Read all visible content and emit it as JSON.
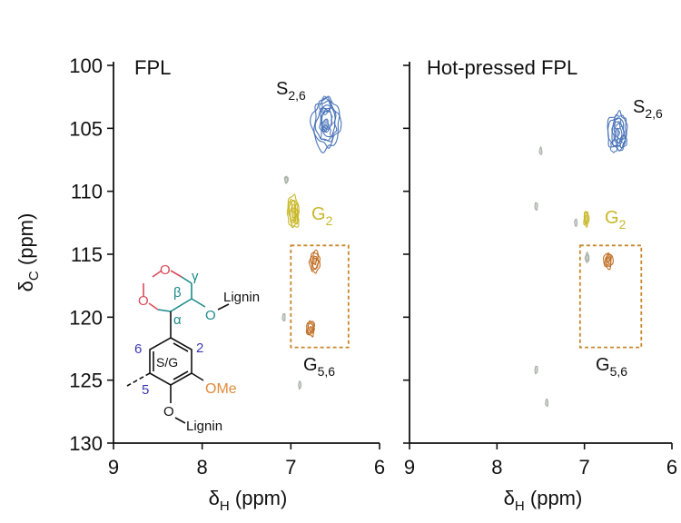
{
  "chart_data": {
    "type": "heatmap",
    "subtype": "2D HSQC NMR spectra (contour plots)",
    "colors": {
      "syringyl": "#4a74b8",
      "guaiacyl": "#c8b828",
      "g56": "#c06e24",
      "artifact": "#a8b0a8",
      "box": "#c8872c",
      "ring_o": "#d94a5a",
      "chain": "#1a8a8a",
      "ome": "#e08a3a",
      "numbers": "#3a3ab4",
      "black": "#111111"
    },
    "axes": {
      "ylabel": "δC (ppm)",
      "ylabel_main": "δ",
      "ylabel_sub": "C",
      "ylabel_unit": " (ppm)",
      "xlabel_main": "δ",
      "xlabel_sub": "H",
      "xlabel_unit": " (ppm)",
      "ylim": [
        130,
        100
      ],
      "yticks": [
        "100",
        "105",
        "110",
        "115",
        "120",
        "125",
        "130"
      ],
      "xlim": [
        9,
        6
      ],
      "xticks": [
        "9",
        "8",
        "7",
        "6"
      ]
    },
    "panels": [
      {
        "title": "FPL",
        "peaks": [
          {
            "label_main": "S",
            "label_sub": "2,6",
            "group": "syringyl",
            "x": 6.6,
            "y": 104.6,
            "rx": 0.17,
            "ry": 2.2,
            "levels": 6
          },
          {
            "label_main": "G",
            "label_sub": "2",
            "group": "guaiacyl",
            "x": 6.97,
            "y": 111.7,
            "rx": 0.07,
            "ry": 1.4,
            "levels": 5
          },
          {
            "group": "g56",
            "x": 6.73,
            "y": 115.6,
            "rx": 0.06,
            "ry": 0.9,
            "levels": 4
          },
          {
            "group": "g56",
            "x": 6.78,
            "y": 120.9,
            "rx": 0.05,
            "ry": 0.7,
            "levels": 4
          },
          {
            "group": "artifact",
            "x": 7.05,
            "y": 109.1,
            "rx": 0.02,
            "ry": 0.3,
            "levels": 2
          },
          {
            "group": "artifact",
            "x": 7.08,
            "y": 120.0,
            "rx": 0.015,
            "ry": 0.3,
            "levels": 1
          },
          {
            "group": "artifact",
            "x": 6.9,
            "y": 125.4,
            "rx": 0.01,
            "ry": 0.3,
            "levels": 1
          }
        ],
        "g56_label_main": "G",
        "g56_label_sub": "5,6",
        "box": {
          "x1": 7.0,
          "x2": 6.35,
          "y1": 114.3,
          "y2": 122.4
        }
      },
      {
        "title": "Hot-pressed FPL",
        "peaks": [
          {
            "label_main": "S",
            "label_sub": "2,6",
            "group": "syringyl",
            "x": 6.62,
            "y": 105.3,
            "rx": 0.12,
            "ry": 1.6,
            "levels": 6
          },
          {
            "label_main": "G",
            "label_sub": "2",
            "group": "guaiacyl",
            "x": 6.98,
            "y": 112.2,
            "rx": 0.03,
            "ry": 0.6,
            "levels": 3
          },
          {
            "group": "g56",
            "x": 6.73,
            "y": 115.5,
            "rx": 0.05,
            "ry": 0.7,
            "levels": 4
          },
          {
            "group": "artifact",
            "x": 7.5,
            "y": 106.8,
            "rx": 0.015,
            "ry": 0.3,
            "levels": 1
          },
          {
            "group": "artifact",
            "x": 7.55,
            "y": 111.2,
            "rx": 0.015,
            "ry": 0.3,
            "levels": 1
          },
          {
            "group": "artifact",
            "x": 7.1,
            "y": 112.5,
            "rx": 0.015,
            "ry": 0.3,
            "levels": 1
          },
          {
            "group": "artifact",
            "x": 6.97,
            "y": 115.3,
            "rx": 0.02,
            "ry": 0.4,
            "levels": 2
          },
          {
            "group": "artifact",
            "x": 7.55,
            "y": 124.2,
            "rx": 0.01,
            "ry": 0.3,
            "levels": 1
          },
          {
            "group": "artifact",
            "x": 7.43,
            "y": 126.8,
            "rx": 0.015,
            "ry": 0.3,
            "levels": 1
          }
        ],
        "g56_label_main": "G",
        "g56_label_sub": "5,6",
        "box": {
          "x1": 7.05,
          "x2": 6.35,
          "y1": 114.3,
          "y2": 122.4
        }
      }
    ]
  },
  "structure": {
    "alpha": "α",
    "beta": "β",
    "gamma": "γ",
    "o_ring1": "O",
    "o_ring2": "O",
    "o_side": "O",
    "o_bottom": "O",
    "lignin_side": "Lignin",
    "lignin_bottom": "Lignin",
    "ring_label": "S/G",
    "ome": "OMe",
    "pos2": "2",
    "pos5": "5",
    "pos6": "6"
  }
}
